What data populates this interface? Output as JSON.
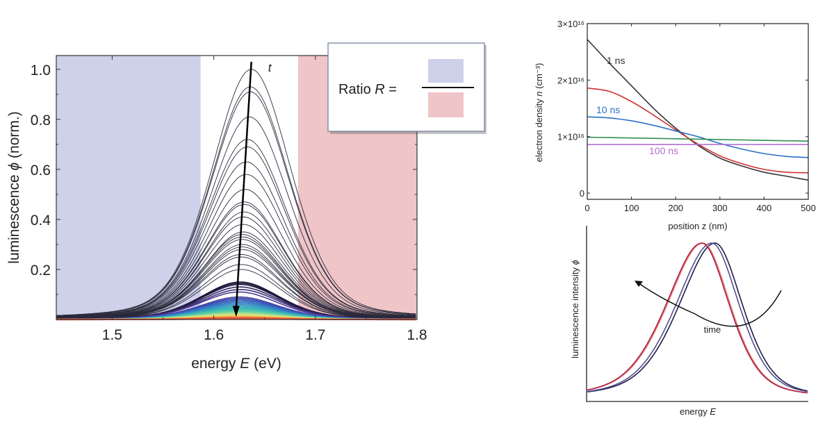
{
  "chart_data": [
    {
      "type": "line",
      "xlabel": {
        "prefix": "energy ",
        "symbol": "E",
        "suffix": " (eV)"
      },
      "ylabel": {
        "prefix": "luminescence ",
        "symbol": "ϕ",
        "suffix": " (norm.)"
      },
      "xlim": [
        1.445,
        1.8
      ],
      "ylim": [
        0,
        1.055
      ],
      "xticks": [
        1.5,
        1.6,
        1.7,
        1.8
      ],
      "xtick_labels": [
        "1.5",
        "1.6",
        "1.7",
        "1.8"
      ],
      "yticks": [
        0.2,
        0.4,
        0.6,
        0.8,
        1.0
      ],
      "ytick_labels": [
        "0.2",
        "0.4",
        "0.6",
        "0.8",
        "1.0"
      ],
      "shaded_regions": [
        {
          "x": [
            1.445,
            1.587
          ],
          "color": "#cfd0ea"
        },
        {
          "x": [
            1.683,
            1.8
          ],
          "color": "#efc5c8"
        }
      ],
      "series_peak_amplitudes": [
        1.0,
        0.93,
        0.91,
        0.81,
        0.72,
        0.69,
        0.63,
        0.58,
        0.52,
        0.47,
        0.46,
        0.43,
        0.41,
        0.38,
        0.35,
        0.34,
        0.33,
        0.32,
        0.3,
        0.29,
        0.28,
        0.26,
        0.25,
        0.22,
        0.2,
        0.15,
        0.145,
        0.14,
        0.13,
        0.12,
        0.11,
        0.09,
        0.085,
        0.08,
        0.075,
        0.07,
        0.065,
        0.06,
        0.055,
        0.05,
        0.045,
        0.04,
        0.035,
        0.03,
        0.027,
        0.024,
        0.021,
        0.018,
        0.015,
        0.012,
        0.01,
        0.008,
        0.006,
        0.004
      ],
      "series_peak_energies": [
        1.637,
        1.636,
        1.636,
        1.635,
        1.633,
        1.633,
        1.632,
        1.632,
        1.631,
        1.63,
        1.63,
        1.63,
        1.629,
        1.629,
        1.629,
        1.628,
        1.628,
        1.628,
        1.628,
        1.628,
        1.628,
        1.627,
        1.627,
        1.627,
        1.627,
        1.626,
        1.626,
        1.626,
        1.626,
        1.626,
        1.625,
        1.625,
        1.625,
        1.625,
        1.625,
        1.625,
        1.625,
        1.625,
        1.625,
        1.625,
        1.625,
        1.625,
        1.625,
        1.625,
        1.625,
        1.625,
        1.625,
        1.625,
        1.625,
        1.625,
        1.625,
        1.625,
        1.625,
        1.625
      ],
      "series_fwhm_eV": 0.092,
      "colormap": "dark navy → purple → blue → teal → green → yellow → orange → red with decreasing amplitude",
      "arrow": {
        "label": "t",
        "from": [
          1.637,
          1.03
        ],
        "to": [
          1.622,
          0.01
        ]
      },
      "inset_legend": {
        "text_prefix": "Ratio ",
        "symbol": "R",
        "text_suffix": " =",
        "numerator_color": "#cfd0ea",
        "denominator_color": "#efc5c8"
      }
    },
    {
      "type": "line",
      "xlabel": "position z (nm)",
      "ylabel": {
        "prefix": "electron density ",
        "symbol": "n",
        "suffix": " (cm⁻³)"
      },
      "xlim": [
        0,
        500
      ],
      "ylim": [
        -1100000000000000.0,
        3e+16
      ],
      "xticks": [
        0,
        100,
        200,
        300,
        400,
        500
      ],
      "xtick_labels": [
        "0",
        "100",
        "200",
        "300",
        "400",
        "500"
      ],
      "yticks": [
        0,
        1e+16,
        2e+16,
        3e+16
      ],
      "ytick_labels": [
        "0",
        "1×10¹⁶",
        "2×10¹⁶",
        "3×10¹⁶"
      ],
      "x": [
        0,
        50,
        100,
        150,
        200,
        250,
        300,
        350,
        400,
        450,
        500
      ],
      "series": [
        {
          "name": "1 ns",
          "color": "#333333",
          "values": [
            2.72e+16,
            2.3e+16,
            1.9e+16,
            1.5e+16,
            1.15e+16,
            8500000000000000.0,
            6200000000000000.0,
            4800000000000000.0,
            3700000000000000.0,
            3000000000000000.0,
            2300000000000000.0
          ]
        },
        {
          "color": "#d03030",
          "values": [
            1.86e+16,
            1.8e+16,
            1.62e+16,
            1.38e+16,
            1.12e+16,
            8700000000000000.0,
            6600000000000000.0,
            5200000000000000.0,
            4200000000000000.0,
            3700000000000000.0,
            3600000000000000.0
          ]
        },
        {
          "name": "10 ns",
          "color": "#2a6fc8",
          "values": [
            1.35e+16,
            1.33e+16,
            1.28e+16,
            1.2e+16,
            1.1e+16,
            1e+16,
            8800000000000000.0,
            7800000000000000.0,
            7000000000000000.0,
            6500000000000000.0,
            6300000000000000.0
          ]
        },
        {
          "color": "#2e9050",
          "values": [
            9900000000000000.0,
            9830000000000000.0,
            9760000000000000.0,
            9690000000000000.0,
            9620000000000000.0,
            9550000000000000.0,
            9480000000000000.0,
            9410000000000000.0,
            9340000000000000.0,
            9270000000000000.0,
            9200000000000000.0
          ]
        },
        {
          "name": "100 ns",
          "color": "#b070d0",
          "values": [
            8600000000000000.0,
            8600000000000000.0,
            8600000000000000.0,
            8600000000000000.0,
            8600000000000000.0,
            8600000000000000.0,
            8600000000000000.0,
            8600000000000000.0,
            8600000000000000.0,
            8600000000000000.0,
            8600000000000000.0
          ]
        }
      ]
    },
    {
      "type": "line",
      "xlabel": {
        "prefix": "energy ",
        "symbol": "E"
      },
      "ylabel": {
        "prefix": "luminescence intensity ",
        "symbol": "ϕ"
      },
      "axis_ticks": "none",
      "series": [
        {
          "color": "#1c1c48",
          "peak_position": 0.58
        },
        {
          "color": "#50508e",
          "peak_position": 0.565
        },
        {
          "color": "#e08080",
          "peak_position": 0.525
        },
        {
          "color": "#b02040",
          "peak_position": 0.52
        }
      ],
      "arrow": {
        "label": "time",
        "direction": "right-to-left, curved"
      }
    }
  ]
}
